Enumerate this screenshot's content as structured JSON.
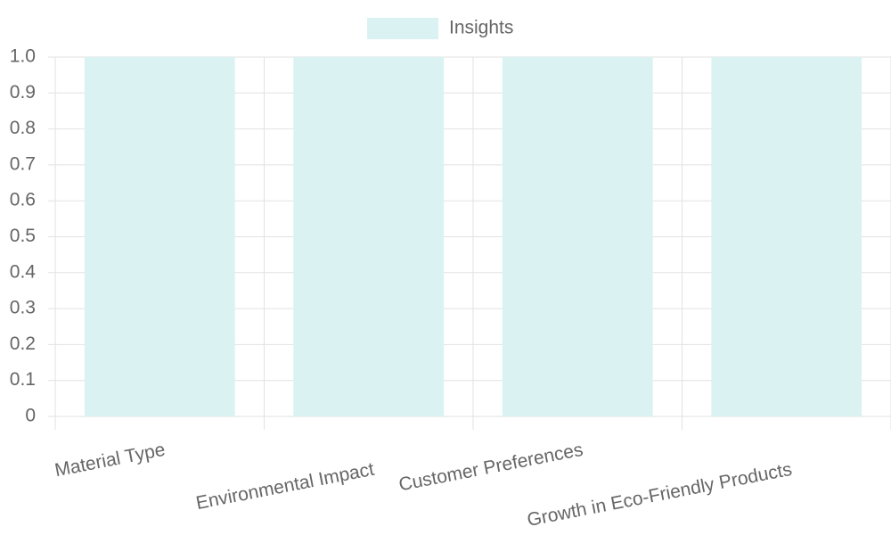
{
  "chart_data": {
    "type": "bar",
    "categories": [
      "Material Type",
      "Environmental Impact",
      "Customer Preferences",
      "Growth in Eco-Friendly Products"
    ],
    "series": [
      {
        "name": "Insights",
        "color": "#dbf2f2",
        "values": [
          1,
          1,
          1,
          1
        ]
      }
    ],
    "ylim": [
      0,
      1
    ],
    "yticks": [
      0,
      0.1,
      0.2,
      0.3,
      0.4,
      0.5,
      0.6,
      0.7,
      0.8,
      0.9,
      {
        "value": 1,
        "label": "1.0"
      }
    ],
    "grid": true,
    "legend": "top"
  }
}
